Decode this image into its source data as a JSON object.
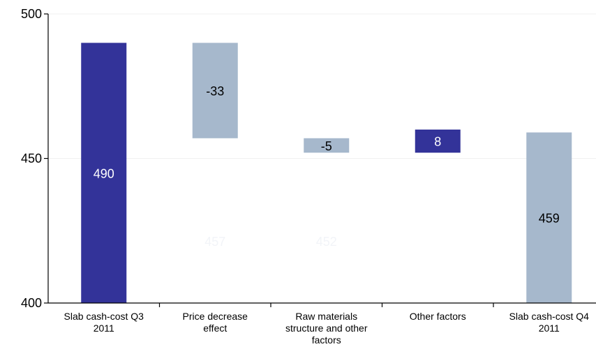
{
  "chart_data": {
    "type": "bar",
    "subtype": "waterfall",
    "categories": [
      [
        "Slab cash-cost Q3",
        "2011"
      ],
      [
        "Price decrease",
        "effect"
      ],
      [
        "Raw materials",
        "structure and other",
        "factors"
      ],
      [
        "Other factors"
      ],
      [
        "Slab cash-cost Q4",
        "2011"
      ]
    ],
    "bars": [
      {
        "base": 400,
        "top": 490,
        "label": "490",
        "kind": "total"
      },
      {
        "base": 457,
        "top": 490,
        "label": "-33",
        "kind": "decrease"
      },
      {
        "base": 452,
        "top": 457,
        "label": "-5",
        "kind": "decrease"
      },
      {
        "base": 452,
        "top": 460,
        "label": "8",
        "kind": "increase"
      },
      {
        "base": 400,
        "top": 459,
        "label": "459",
        "kind": "total-end"
      }
    ],
    "hidden_labels": [
      "457",
      "452"
    ],
    "ylim": [
      400,
      500
    ],
    "yticks": [
      "400",
      "450",
      "500"
    ],
    "grid": true,
    "colors": {
      "total": "#333399",
      "increase": "#333399",
      "decrease": "#a6b8cc",
      "total-end": "#a6b8cc",
      "grid": "#f0f0f0",
      "axis": "#000000",
      "ghost_label": "#f2f4f8"
    },
    "label_colors": {
      "total": "#ffffff",
      "increase": "#ffffff",
      "decrease": "#000000",
      "total-end": "#000000"
    }
  }
}
